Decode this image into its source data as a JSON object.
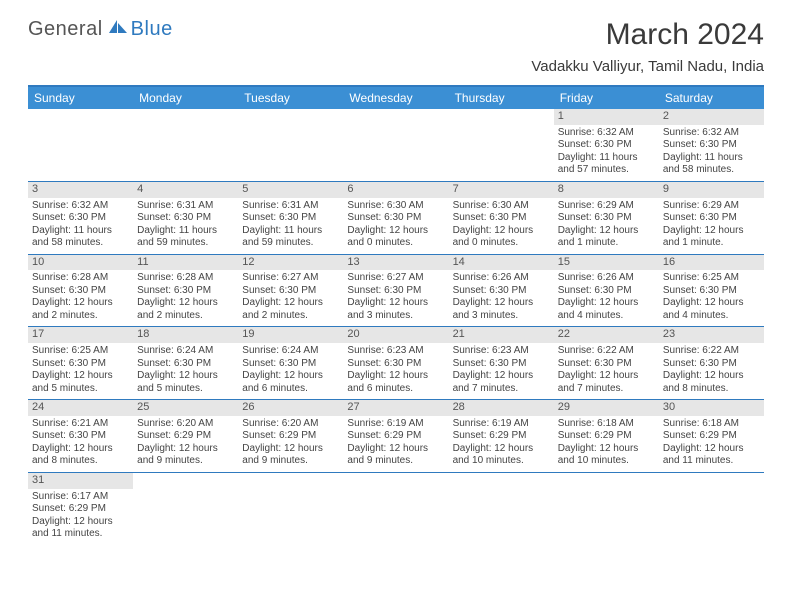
{
  "brand": {
    "general": "General",
    "blue": "Blue"
  },
  "title": "March 2024",
  "location": "Vadakku Valliyur, Tamil Nadu, India",
  "colors": {
    "header_bg": "#3b8fd4",
    "border": "#2f7abf",
    "daynum_bg": "#e6e6e6",
    "text": "#444444",
    "brand_gray": "#555555",
    "brand_blue": "#2f7abf"
  },
  "weekdays": [
    "Sunday",
    "Monday",
    "Tuesday",
    "Wednesday",
    "Thursday",
    "Friday",
    "Saturday"
  ],
  "weeks": [
    [
      {
        "empty": true
      },
      {
        "empty": true
      },
      {
        "empty": true
      },
      {
        "empty": true
      },
      {
        "empty": true
      },
      {
        "day": "1",
        "sunrise": "Sunrise: 6:32 AM",
        "sunset": "Sunset: 6:30 PM",
        "daylight": "Daylight: 11 hours and 57 minutes."
      },
      {
        "day": "2",
        "sunrise": "Sunrise: 6:32 AM",
        "sunset": "Sunset: 6:30 PM",
        "daylight": "Daylight: 11 hours and 58 minutes."
      }
    ],
    [
      {
        "day": "3",
        "sunrise": "Sunrise: 6:32 AM",
        "sunset": "Sunset: 6:30 PM",
        "daylight": "Daylight: 11 hours and 58 minutes."
      },
      {
        "day": "4",
        "sunrise": "Sunrise: 6:31 AM",
        "sunset": "Sunset: 6:30 PM",
        "daylight": "Daylight: 11 hours and 59 minutes."
      },
      {
        "day": "5",
        "sunrise": "Sunrise: 6:31 AM",
        "sunset": "Sunset: 6:30 PM",
        "daylight": "Daylight: 11 hours and 59 minutes."
      },
      {
        "day": "6",
        "sunrise": "Sunrise: 6:30 AM",
        "sunset": "Sunset: 6:30 PM",
        "daylight": "Daylight: 12 hours and 0 minutes."
      },
      {
        "day": "7",
        "sunrise": "Sunrise: 6:30 AM",
        "sunset": "Sunset: 6:30 PM",
        "daylight": "Daylight: 12 hours and 0 minutes."
      },
      {
        "day": "8",
        "sunrise": "Sunrise: 6:29 AM",
        "sunset": "Sunset: 6:30 PM",
        "daylight": "Daylight: 12 hours and 1 minute."
      },
      {
        "day": "9",
        "sunrise": "Sunrise: 6:29 AM",
        "sunset": "Sunset: 6:30 PM",
        "daylight": "Daylight: 12 hours and 1 minute."
      }
    ],
    [
      {
        "day": "10",
        "sunrise": "Sunrise: 6:28 AM",
        "sunset": "Sunset: 6:30 PM",
        "daylight": "Daylight: 12 hours and 2 minutes."
      },
      {
        "day": "11",
        "sunrise": "Sunrise: 6:28 AM",
        "sunset": "Sunset: 6:30 PM",
        "daylight": "Daylight: 12 hours and 2 minutes."
      },
      {
        "day": "12",
        "sunrise": "Sunrise: 6:27 AM",
        "sunset": "Sunset: 6:30 PM",
        "daylight": "Daylight: 12 hours and 2 minutes."
      },
      {
        "day": "13",
        "sunrise": "Sunrise: 6:27 AM",
        "sunset": "Sunset: 6:30 PM",
        "daylight": "Daylight: 12 hours and 3 minutes."
      },
      {
        "day": "14",
        "sunrise": "Sunrise: 6:26 AM",
        "sunset": "Sunset: 6:30 PM",
        "daylight": "Daylight: 12 hours and 3 minutes."
      },
      {
        "day": "15",
        "sunrise": "Sunrise: 6:26 AM",
        "sunset": "Sunset: 6:30 PM",
        "daylight": "Daylight: 12 hours and 4 minutes."
      },
      {
        "day": "16",
        "sunrise": "Sunrise: 6:25 AM",
        "sunset": "Sunset: 6:30 PM",
        "daylight": "Daylight: 12 hours and 4 minutes."
      }
    ],
    [
      {
        "day": "17",
        "sunrise": "Sunrise: 6:25 AM",
        "sunset": "Sunset: 6:30 PM",
        "daylight": "Daylight: 12 hours and 5 minutes."
      },
      {
        "day": "18",
        "sunrise": "Sunrise: 6:24 AM",
        "sunset": "Sunset: 6:30 PM",
        "daylight": "Daylight: 12 hours and 5 minutes."
      },
      {
        "day": "19",
        "sunrise": "Sunrise: 6:24 AM",
        "sunset": "Sunset: 6:30 PM",
        "daylight": "Daylight: 12 hours and 6 minutes."
      },
      {
        "day": "20",
        "sunrise": "Sunrise: 6:23 AM",
        "sunset": "Sunset: 6:30 PM",
        "daylight": "Daylight: 12 hours and 6 minutes."
      },
      {
        "day": "21",
        "sunrise": "Sunrise: 6:23 AM",
        "sunset": "Sunset: 6:30 PM",
        "daylight": "Daylight: 12 hours and 7 minutes."
      },
      {
        "day": "22",
        "sunrise": "Sunrise: 6:22 AM",
        "sunset": "Sunset: 6:30 PM",
        "daylight": "Daylight: 12 hours and 7 minutes."
      },
      {
        "day": "23",
        "sunrise": "Sunrise: 6:22 AM",
        "sunset": "Sunset: 6:30 PM",
        "daylight": "Daylight: 12 hours and 8 minutes."
      }
    ],
    [
      {
        "day": "24",
        "sunrise": "Sunrise: 6:21 AM",
        "sunset": "Sunset: 6:30 PM",
        "daylight": "Daylight: 12 hours and 8 minutes."
      },
      {
        "day": "25",
        "sunrise": "Sunrise: 6:20 AM",
        "sunset": "Sunset: 6:29 PM",
        "daylight": "Daylight: 12 hours and 9 minutes."
      },
      {
        "day": "26",
        "sunrise": "Sunrise: 6:20 AM",
        "sunset": "Sunset: 6:29 PM",
        "daylight": "Daylight: 12 hours and 9 minutes."
      },
      {
        "day": "27",
        "sunrise": "Sunrise: 6:19 AM",
        "sunset": "Sunset: 6:29 PM",
        "daylight": "Daylight: 12 hours and 9 minutes."
      },
      {
        "day": "28",
        "sunrise": "Sunrise: 6:19 AM",
        "sunset": "Sunset: 6:29 PM",
        "daylight": "Daylight: 12 hours and 10 minutes."
      },
      {
        "day": "29",
        "sunrise": "Sunrise: 6:18 AM",
        "sunset": "Sunset: 6:29 PM",
        "daylight": "Daylight: 12 hours and 10 minutes."
      },
      {
        "day": "30",
        "sunrise": "Sunrise: 6:18 AM",
        "sunset": "Sunset: 6:29 PM",
        "daylight": "Daylight: 12 hours and 11 minutes."
      }
    ],
    [
      {
        "day": "31",
        "sunrise": "Sunrise: 6:17 AM",
        "sunset": "Sunset: 6:29 PM",
        "daylight": "Daylight: 12 hours and 11 minutes."
      },
      {
        "empty": true
      },
      {
        "empty": true
      },
      {
        "empty": true
      },
      {
        "empty": true
      },
      {
        "empty": true
      },
      {
        "empty": true
      }
    ]
  ]
}
